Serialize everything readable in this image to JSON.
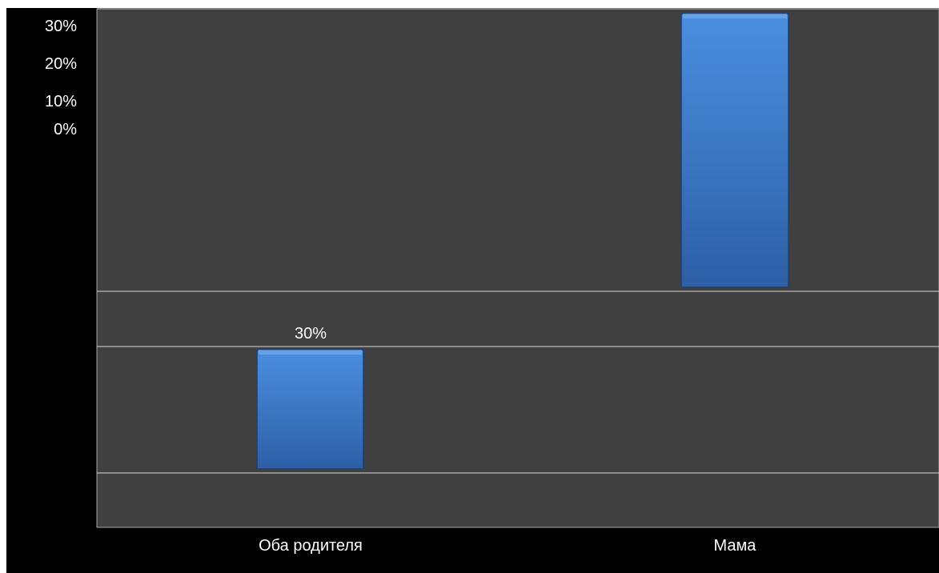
{
  "chart_data": {
    "type": "bar",
    "title": "",
    "xlabel": "",
    "ylabel": "",
    "categories": [
      "Оба родителя",
      "Мама"
    ],
    "values": [
      30,
      70
    ],
    "data_labels": [
      "30%",
      ""
    ],
    "y_ticks": [
      "30%",
      "20%",
      "10%",
      "0%"
    ],
    "grid": true,
    "legend": "none",
    "colors": {
      "background": "#000000",
      "plot_area": "#404040",
      "gridline": "#a6a6a6",
      "bar_top": "#4a8fe0",
      "bar_bottom": "#2d5fa6",
      "text": "#ffffff"
    }
  }
}
